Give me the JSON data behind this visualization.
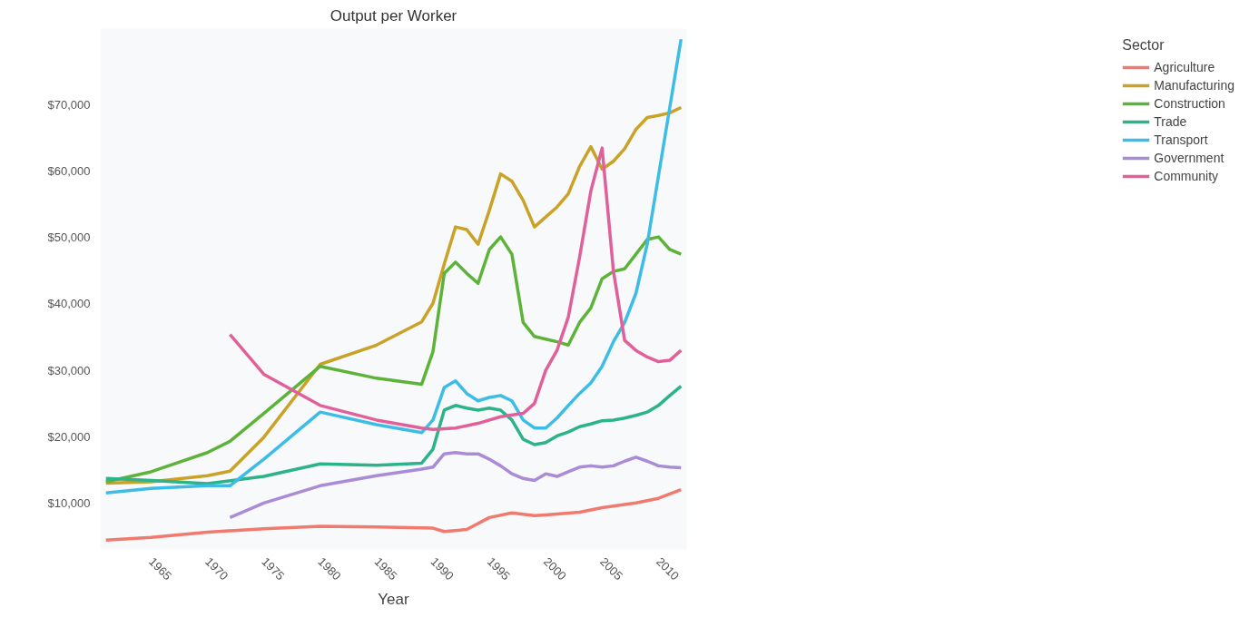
{
  "chart_data": {
    "type": "line",
    "title": "Output per Worker",
    "xlabel": "Year",
    "legend_title": "Sector",
    "legend": "right",
    "grid": false,
    "line_style": "solid",
    "xlim": [
      1960.5,
      2012.5
    ],
    "ylim": [
      3000,
      81500
    ],
    "xticks": [
      1965,
      1970,
      1975,
      1980,
      1985,
      1990,
      1995,
      2000,
      2005,
      2010
    ],
    "yticks": [
      {
        "value": 10000,
        "label": "$10,000"
      },
      {
        "value": 20000,
        "label": "$20,000"
      },
      {
        "value": 30000,
        "label": "$30,000"
      },
      {
        "value": 40000,
        "label": "$40,000"
      },
      {
        "value": 50000,
        "label": "$50,000"
      },
      {
        "value": 60000,
        "label": "$60,000"
      },
      {
        "value": 70000,
        "label": "$70,000"
      }
    ],
    "series": [
      {
        "name": "Agriculture",
        "color": "#f07a6e",
        "x": [
          1961,
          1965,
          1970,
          1975,
          1980,
          1985,
          1990,
          1991,
          1993,
          1995,
          1997,
          1999,
          2000,
          2003,
          2005,
          2008,
          2010,
          2012
        ],
        "values": [
          4400,
          4800,
          5600,
          6100,
          6500,
          6400,
          6200,
          5700,
          6000,
          7800,
          8500,
          8100,
          8200,
          8600,
          9300,
          10000,
          10700,
          12000
        ]
      },
      {
        "name": "Manufacturing",
        "color": "#c9a227",
        "x": [
          1961,
          1965,
          1970,
          1972,
          1975,
          1980,
          1985,
          1989,
          1990,
          1991,
          1992,
          1993,
          1994,
          1995,
          1996,
          1997,
          1998,
          1999,
          2000,
          2001,
          2002,
          2003,
          2004,
          2005,
          2006,
          2007,
          2008,
          2009,
          2010,
          2011,
          2012
        ],
        "values": [
          13000,
          13200,
          14100,
          14800,
          19900,
          30900,
          33800,
          37300,
          40100,
          46000,
          51600,
          51200,
          49000,
          54100,
          59600,
          58500,
          55600,
          51600,
          53100,
          54600,
          56600,
          60700,
          63700,
          60300,
          61500,
          63400,
          66300,
          68100,
          68400,
          68800,
          69600
        ]
      },
      {
        "name": "Construction",
        "color": "#5db33a",
        "x": [
          1961,
          1965,
          1970,
          1972,
          1975,
          1980,
          1985,
          1989,
          1990,
          1991,
          1992,
          1993,
          1994,
          1995,
          1996,
          1997,
          1998,
          1999,
          2000,
          2001,
          2002,
          2003,
          2004,
          2005,
          2006,
          2007,
          2008,
          2009,
          2010,
          2011,
          2012
        ],
        "values": [
          13200,
          14700,
          17600,
          19300,
          23500,
          30600,
          28800,
          27900,
          32800,
          44600,
          46300,
          44600,
          43100,
          48200,
          50100,
          47500,
          37200,
          35100,
          34700,
          34300,
          33800,
          37200,
          39400,
          43800,
          44900,
          45300,
          47500,
          49700,
          50100,
          48200,
          47500
        ]
      },
      {
        "name": "Trade",
        "color": "#2cb38a",
        "x": [
          1961,
          1965,
          1970,
          1975,
          1980,
          1985,
          1989,
          1990,
          1991,
          1992,
          1993,
          1994,
          1995,
          1996,
          1997,
          1998,
          1999,
          2000,
          2001,
          2002,
          2003,
          2004,
          2005,
          2006,
          2007,
          2008,
          2009,
          2010,
          2011,
          2012
        ],
        "values": [
          13700,
          13400,
          12900,
          14000,
          15900,
          15700,
          16000,
          18100,
          24000,
          24700,
          24300,
          24000,
          24300,
          24000,
          22500,
          19600,
          18800,
          19100,
          20100,
          20700,
          21500,
          21900,
          22400,
          22500,
          22800,
          23200,
          23700,
          24700,
          26200,
          27600
        ]
      },
      {
        "name": "Transport",
        "color": "#3dbde6",
        "x": [
          1961,
          1965,
          1970,
          1972,
          1975,
          1980,
          1985,
          1989,
          1990,
          1991,
          1992,
          1993,
          1994,
          1995,
          1996,
          1997,
          1998,
          1999,
          2000,
          2001,
          2002,
          2003,
          2004,
          2005,
          2006,
          2007,
          2008,
          2009,
          2010,
          2011,
          2012
        ],
        "values": [
          11500,
          12200,
          12600,
          12600,
          16600,
          23700,
          21800,
          20600,
          22500,
          27400,
          28400,
          26500,
          25400,
          25900,
          26200,
          25400,
          22500,
          21300,
          21300,
          22800,
          24700,
          26500,
          28100,
          30600,
          34300,
          37200,
          41600,
          49000,
          59300,
          69600,
          79900
        ]
      },
      {
        "name": "Government",
        "color": "#a98bd6",
        "x": [
          1972,
          1975,
          1980,
          1985,
          1989,
          1990,
          1991,
          1992,
          1993,
          1994,
          1995,
          1996,
          1997,
          1998,
          1999,
          2000,
          2001,
          2002,
          2003,
          2004,
          2005,
          2006,
          2007,
          2008,
          2009,
          2010,
          2011,
          2012
        ],
        "values": [
          7800,
          10000,
          12600,
          14100,
          15100,
          15400,
          17400,
          17600,
          17400,
          17400,
          16600,
          15600,
          14400,
          13700,
          13400,
          14400,
          14000,
          14700,
          15400,
          15600,
          15400,
          15600,
          16300,
          16900,
          16300,
          15600,
          15400,
          15300
        ]
      },
      {
        "name": "Community",
        "color": "#e0619a",
        "x": [
          1972,
          1975,
          1980,
          1985,
          1989,
          1990,
          1992,
          1994,
          1996,
          1998,
          1999,
          2000,
          2001,
          2002,
          2003,
          2004,
          2005,
          2006,
          2007,
          2008,
          2009,
          2010,
          2011,
          2012
        ],
        "values": [
          35400,
          29400,
          24700,
          22500,
          21300,
          21100,
          21300,
          22000,
          23000,
          23500,
          25000,
          30000,
          33000,
          38000,
          47000,
          57000,
          63500,
          45000,
          34500,
          33000,
          32000,
          31300,
          31500,
          33000
        ]
      }
    ]
  }
}
